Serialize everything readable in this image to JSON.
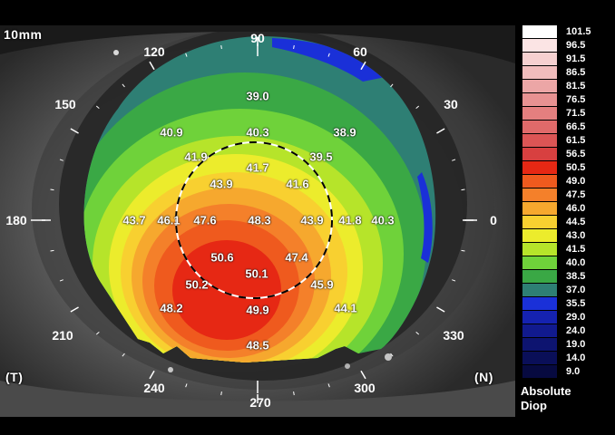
{
  "scale_label": "10mm",
  "markers": {
    "temporal": "(T)",
    "nasal": "(N)"
  },
  "angles": [
    {
      "text": "90",
      "deg": 90
    },
    {
      "text": "60",
      "deg": 60
    },
    {
      "text": "120",
      "deg": 120
    },
    {
      "text": "30",
      "deg": 30
    },
    {
      "text": "150",
      "deg": 150
    },
    {
      "text": "0",
      "deg": 0
    },
    {
      "text": "180",
      "deg": 180
    },
    {
      "text": "330",
      "deg": 330
    },
    {
      "text": "210",
      "deg": 210
    },
    {
      "text": "300",
      "deg": 300
    },
    {
      "text": "240",
      "deg": 240
    },
    {
      "text": "270",
      "deg": 270
    }
  ],
  "map_values": [
    "39.0",
    "40.9",
    "40.3",
    "38.9",
    "41.9",
    "39.5",
    "41.7",
    "43.9",
    "41.6",
    "43.7",
    "46.1",
    "47.6",
    "48.3",
    "43.9",
    "41.8",
    "40.3",
    "50.6",
    "47.4",
    "50.1",
    "50.2",
    "45.9",
    "48.2",
    "49.9",
    "44.1",
    "48.5"
  ],
  "scale": [
    {
      "value": "101.5",
      "color": "#ffffff"
    },
    {
      "value": "96.5",
      "color": "#fbe4e4"
    },
    {
      "value": "91.5",
      "color": "#f6d0d0"
    },
    {
      "value": "86.5",
      "color": "#f1bcbc"
    },
    {
      "value": "81.5",
      "color": "#eca6a6"
    },
    {
      "value": "76.5",
      "color": "#e89292"
    },
    {
      "value": "71.5",
      "color": "#e47f7f"
    },
    {
      "value": "66.5",
      "color": "#e06a6a"
    },
    {
      "value": "61.5",
      "color": "#dc5555"
    },
    {
      "value": "56.5",
      "color": "#d84040"
    },
    {
      "value": "50.5",
      "color": "#e62814"
    },
    {
      "value": "49.0",
      "color": "#ef5a1e"
    },
    {
      "value": "47.5",
      "color": "#f4802a"
    },
    {
      "value": "46.0",
      "color": "#f6a82e"
    },
    {
      "value": "44.5",
      "color": "#f8d030"
    },
    {
      "value": "43.0",
      "color": "#ecec2c"
    },
    {
      "value": "41.5",
      "color": "#b6e42a"
    },
    {
      "value": "40.0",
      "color": "#6fd23a"
    },
    {
      "value": "38.5",
      "color": "#3aa845"
    },
    {
      "value": "37.0",
      "color": "#2e7f74"
    },
    {
      "value": "35.5",
      "color": "#1a30d8"
    },
    {
      "value": "29.0",
      "color": "#1522b0"
    },
    {
      "value": "24.0",
      "color": "#111a8e"
    },
    {
      "value": "19.0",
      "color": "#0d1470"
    },
    {
      "value": "14.0",
      "color": "#0a0f58"
    },
    {
      "value": "9.0",
      "color": "#070a40"
    }
  ],
  "legend": {
    "line1": "Absolute",
    "line2": "Diop"
  }
}
